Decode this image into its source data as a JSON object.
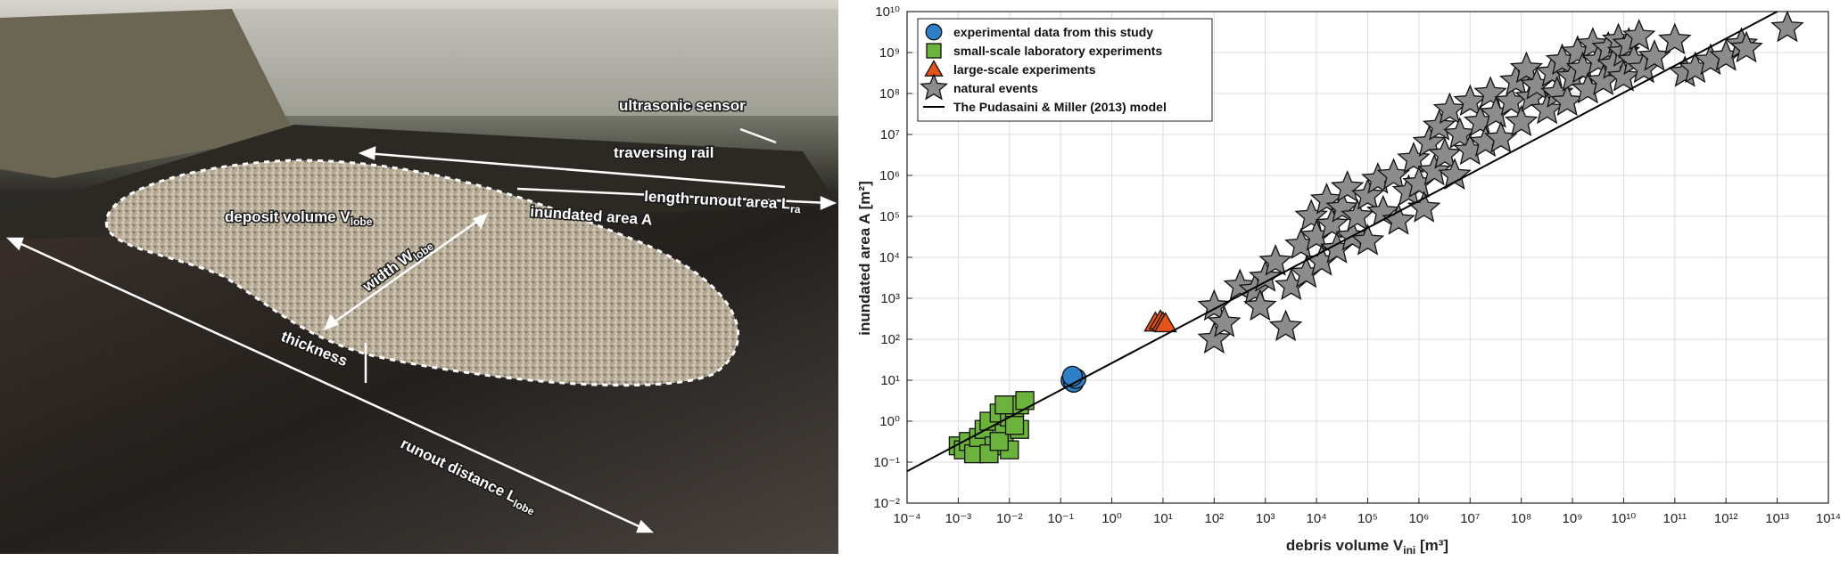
{
  "photo": {
    "labels": [
      {
        "text": "ultrasonic sensor"
      },
      {
        "text": "traversing rail"
      },
      {
        "text": "length runout area L",
        "sub": "ra"
      },
      {
        "text": "deposit volume V",
        "sub": "lobe"
      },
      {
        "text": "inundated area A"
      },
      {
        "text": "width W",
        "sub": "lobe"
      },
      {
        "text": "thickness"
      },
      {
        "text": "runout distance L",
        "sub": "lobe"
      }
    ]
  },
  "chart_data": {
    "type": "scatter",
    "xlabel": {
      "text": "debris volume V",
      "sub": "ini",
      "after": " [m³]"
    },
    "ylabel": "inundated area A [m²]",
    "xscale": "log",
    "yscale": "log",
    "grid": true,
    "legend": "upper left",
    "xlim": [
      0.0001,
      100000000000000.0
    ],
    "ylim": [
      0.01,
      10000000000.0
    ],
    "xticks": [
      {
        "value": 0.0001,
        "label": "10⁻⁴"
      },
      {
        "value": 0.001,
        "label": "10⁻³"
      },
      {
        "value": 0.01,
        "label": "10⁻²"
      },
      {
        "value": 0.1,
        "label": "10⁻¹"
      },
      {
        "value": 1,
        "label": "10⁰"
      },
      {
        "value": 10.0,
        "label": "10¹"
      },
      {
        "value": 100.0,
        "label": "10²"
      },
      {
        "value": 1000.0,
        "label": "10³"
      },
      {
        "value": 10000.0,
        "label": "10⁴"
      },
      {
        "value": 100000.0,
        "label": "10⁵"
      },
      {
        "value": 1000000.0,
        "label": "10⁶"
      },
      {
        "value": 10000000.0,
        "label": "10⁷"
      },
      {
        "value": 100000000.0,
        "label": "10⁸"
      },
      {
        "value": 1000000000.0,
        "label": "10⁹"
      },
      {
        "value": 10000000000.0,
        "label": "10¹⁰"
      },
      {
        "value": 100000000000.0,
        "label": "10¹¹"
      },
      {
        "value": 1000000000000.0,
        "label": "10¹²"
      },
      {
        "value": 10000000000000.0,
        "label": "10¹³"
      },
      {
        "value": 100000000000000.0,
        "label": "10¹⁴"
      }
    ],
    "yticks": [
      {
        "value": 0.01,
        "label": "10⁻²"
      },
      {
        "value": 0.1,
        "label": "10⁻¹"
      },
      {
        "value": 1,
        "label": "10⁰"
      },
      {
        "value": 10.0,
        "label": "10¹"
      },
      {
        "value": 100.0,
        "label": "10²"
      },
      {
        "value": 1000.0,
        "label": "10³"
      },
      {
        "value": 10000.0,
        "label": "10⁴"
      },
      {
        "value": 100000.0,
        "label": "10⁵"
      },
      {
        "value": 1000000.0,
        "label": "10⁶"
      },
      {
        "value": 10000000.0,
        "label": "10⁷"
      },
      {
        "value": 100000000.0,
        "label": "10⁸"
      },
      {
        "value": 1000000000.0,
        "label": "10⁹"
      },
      {
        "value": 10000000000.0,
        "label": "10¹⁰"
      }
    ],
    "series": [
      {
        "name": "experimental data from this study",
        "marker": "circle",
        "color": "#2f7fc8",
        "x": [
          0.16,
          0.18,
          0.2,
          0.17
        ],
        "values": [
          10,
          8.9,
          11,
          12.6
        ]
      },
      {
        "name": "small-scale laboratory experiments",
        "marker": "square",
        "color": "#6cb33e",
        "x": [
          0.001,
          0.00126,
          0.00158,
          0.002,
          0.0025,
          0.0032,
          0.004,
          0.005,
          0.0063,
          0.0079,
          0.01,
          0.01,
          0.0126,
          0.0158,
          0.0158,
          0.02,
          0.004,
          0.0063,
          0.0079,
          0.0126
        ],
        "values": [
          0.25,
          0.2,
          0.32,
          0.16,
          0.4,
          0.63,
          1,
          0.25,
          1.58,
          0.5,
          1.26,
          0.2,
          2,
          2.5,
          0.63,
          3.2,
          0.16,
          0.32,
          2.5,
          0.79
        ]
      },
      {
        "name": "large-scale experiments",
        "marker": "triangle",
        "color": "#e4531c",
        "x": [
          7.1,
          8.9,
          10,
          11.2
        ],
        "values": [
          250,
          280,
          250,
          240
        ]
      },
      {
        "name": "natural events",
        "marker": "star",
        "color": "#8c8c8c",
        "x": [
          100.0,
          100.0,
          158.0,
          320.0,
          630.0,
          790.0,
          2500.0,
          1000.0,
          1580.0,
          3200.0,
          5000.0,
          6300.0,
          7900.0,
          10000.0,
          12600.0,
          15800.0,
          20000.0,
          25000.0,
          32000.0,
          40000.0,
          50000.0,
          63000.0,
          100000.0,
          100000.0,
          158000.0,
          200000.0,
          320000.0,
          400000.0,
          630000.0,
          790000.0,
          1000000.0,
          1260000.0,
          1580000.0,
          2000000.0,
          2500000.0,
          3200000.0,
          4000000.0,
          5000000.0,
          6300000.0,
          10000000.0,
          10000000.0,
          15800000.0,
          20000000.0,
          25000000.0,
          32000000.0,
          40000000.0,
          63000000.0,
          79000000.0,
          100000000.0,
          126000000.0,
          158000000.0,
          200000000.0,
          320000000.0,
          400000000.0,
          500000000.0,
          630000000.0,
          790000000.0,
          1000000000.0,
          1260000000.0,
          1580000000.0,
          2000000000.0,
          2500000000.0,
          3200000000.0,
          4000000000.0,
          5000000000.0,
          6300000000.0,
          7900000000.0,
          10000000000.0,
          10000000000.0,
          12600000000.0,
          15800000000.0,
          20000000000.0,
          25000000000.0,
          40000000000.0,
          100000000000.0,
          158000000000.0,
          250000000000.0,
          500000000000.0,
          1000000000000.0,
          2000000000000.0,
          2500000000000.0,
          15800000000000.0
        ],
        "values": [
          100.0,
          630.0,
          250.0,
          2000.0,
          1580.0,
          630.0,
          200.0,
          3200.0,
          7900.0,
          2000.0,
          20000.0,
          4000.0,
          100000.0,
          32000.0,
          7900.0,
          250000.0,
          63000.0,
          15800.0,
          158000.0,
          500000.0,
          32000.0,
          100000.0,
          320000.0,
          25000.0,
          790000.0,
          126000.0,
          1000000.0,
          79000.0,
          400000.0,
          2500000.0,
          630000.0,
          158000.0,
          6300000.0,
          1260000.0,
          15800000.0,
          3200000.0,
          40000000.0,
          1000000.0,
          10000000.0,
          4000000.0,
          63000000.0,
          20000000.0,
          6300000.0,
          100000000.0,
          32000000.0,
          7900000.0,
          63000000.0,
          200000000.0,
          20000000.0,
          400000000.0,
          79000000.0,
          158000000.0,
          40000000.0,
          320000000.0,
          100000000.0,
          630000000.0,
          63000000.0,
          250000000.0,
          1000000000.0,
          400000000.0,
          126000000.0,
          1580000000.0,
          630000000.0,
          200000000.0,
          1260000000.0,
          500000000.0,
          2000000000.0,
          1000000000.0,
          250000000.0,
          1580000000.0,
          630000000.0,
          2500000000.0,
          400000000.0,
          790000000.0,
          2000000000.0,
          320000000.0,
          400000000.0,
          630000000.0,
          790000000.0,
          1580000000.0,
          1260000000.0,
          4000000000.0
        ]
      },
      {
        "name": "The Pudasaini & Miller (2013) model",
        "marker": "line",
        "color": "#000000",
        "x": [
          0.0001,
          10000000000000.0
        ],
        "values": [
          0.06,
          10000000000.0
        ]
      }
    ]
  }
}
